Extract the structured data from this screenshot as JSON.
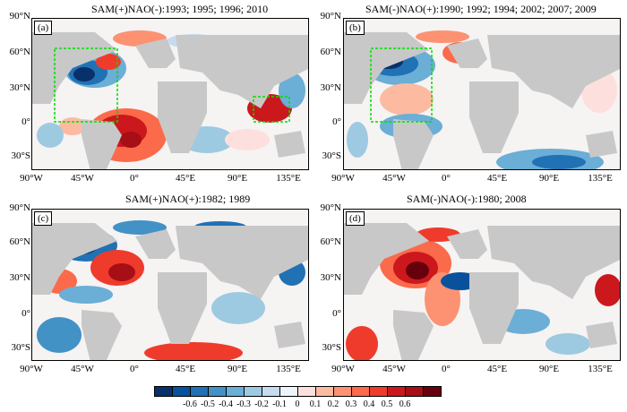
{
  "panels": [
    {
      "id": "a",
      "label": "(a)",
      "title": "SAM(+)NAO(-):1993; 1995; 1996; 2010"
    },
    {
      "id": "b",
      "label": "(b)",
      "title": "SAM(-)NAO(+):1990; 1992; 1994; 2002; 2007; 2009"
    },
    {
      "id": "c",
      "label": "(c)",
      "title": "SAM(+)NAO(+):1982; 1989"
    },
    {
      "id": "d",
      "label": "(d)",
      "title": "SAM(-)NAO(-):1980; 2008"
    }
  ],
  "lat_ticks": [
    "90°N",
    "60°N",
    "30°N",
    "0°",
    "30°S"
  ],
  "lon_ticks": [
    "90°W",
    "45°W",
    "0°",
    "45°E",
    "90°E",
    "135°E"
  ],
  "colorbar": {
    "labels": [
      "-0.6",
      "-0.5",
      "-0.4",
      "-0.3",
      "-0.2",
      "-0.1",
      "0",
      "0.1",
      "0.2",
      "0.3",
      "0.4",
      "0.5",
      "0.6"
    ],
    "colors": [
      "#08306b",
      "#08519c",
      "#2171b5",
      "#4292c6",
      "#6baed6",
      "#9ecae1",
      "#c6dbef",
      "#eef4fb",
      "#fde0dd",
      "#fcbba1",
      "#fc9272",
      "#fb6a4a",
      "#ef3b2c",
      "#cb181d",
      "#a50f15",
      "#67000d"
    ]
  }
}
